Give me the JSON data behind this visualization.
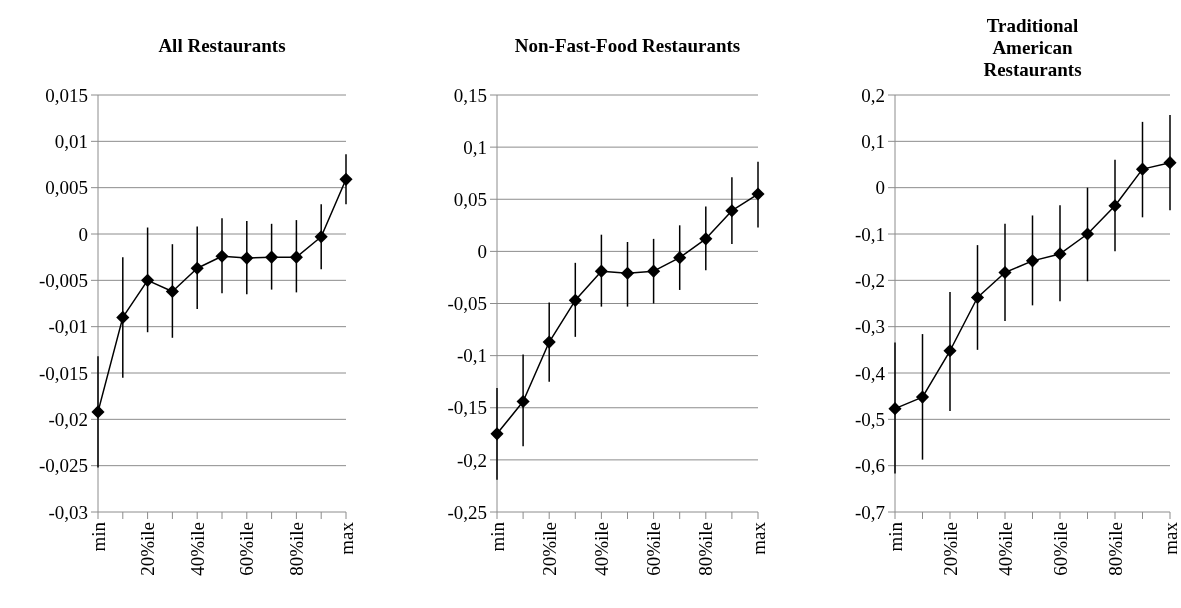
{
  "chart_data": [
    {
      "type": "line",
      "title": "All Restaurants",
      "categories": [
        "min",
        null,
        "20%ile",
        null,
        "40%ile",
        null,
        "60%ile",
        null,
        "80%ile",
        null,
        "max"
      ],
      "series": [
        {
          "color": "#000000",
          "values": [
            -0.0192,
            -0.009,
            -0.005,
            -0.0062,
            -0.0037,
            -0.0024,
            -0.0026,
            -0.0025,
            -0.0025,
            -0.0003,
            0.0059
          ],
          "errors": [
            [
              -0.0252,
              -0.0132
            ],
            [
              -0.0155,
              -0.0025
            ],
            [
              -0.0106,
              0.0007
            ],
            [
              -0.0112,
              -0.0011
            ],
            [
              -0.0081,
              0.0008
            ],
            [
              -0.0064,
              0.0017
            ],
            [
              -0.0065,
              0.0014
            ],
            [
              -0.006,
              0.0011
            ],
            [
              -0.0063,
              0.0015
            ],
            [
              -0.0038,
              0.0032
            ],
            [
              0.0032,
              0.0086
            ]
          ]
        }
      ],
      "ylim": [
        -0.03,
        0.015
      ],
      "yticks": [
        {
          "value": -0.03,
          "label": "-0,03"
        },
        {
          "value": -0.025,
          "label": "-0,025"
        },
        {
          "value": -0.02,
          "label": "-0,02"
        },
        {
          "value": -0.015,
          "label": "-0,015"
        },
        {
          "value": -0.01,
          "label": "-0,01"
        },
        {
          "value": -0.005,
          "label": "-0,005"
        },
        {
          "value": 0,
          "label": "0"
        },
        {
          "value": 0.005,
          "label": "0,005"
        },
        {
          "value": 0.01,
          "label": "0,01"
        },
        {
          "value": 0.015,
          "label": "0,015"
        }
      ],
      "grid": "y",
      "marker": "diamond",
      "line_style": "solid"
    },
    {
      "type": "line",
      "title": "Non-Fast-Food Restaurants",
      "categories": [
        "min",
        null,
        "20%ile",
        null,
        "40%ile",
        null,
        "60%ile",
        null,
        "80%ile",
        null,
        "max"
      ],
      "series": [
        {
          "color": "#000000",
          "values": [
            -0.175,
            -0.144,
            -0.087,
            -0.047,
            -0.019,
            -0.021,
            -0.019,
            -0.006,
            0.012,
            0.039,
            0.055
          ],
          "errors": [
            [
              -0.219,
              -0.131
            ],
            [
              -0.187,
              -0.099
            ],
            [
              -0.125,
              -0.049
            ],
            [
              -0.082,
              -0.011
            ],
            [
              -0.053,
              0.016
            ],
            [
              -0.053,
              0.009
            ],
            [
              -0.05,
              0.012
            ],
            [
              -0.037,
              0.025
            ],
            [
              -0.018,
              0.043
            ],
            [
              0.007,
              0.071
            ],
            [
              0.023,
              0.086
            ]
          ]
        }
      ],
      "ylim": [
        -0.25,
        0.15
      ],
      "yticks": [
        {
          "value": -0.25,
          "label": "-0,25"
        },
        {
          "value": -0.2,
          "label": "-0,2"
        },
        {
          "value": -0.15,
          "label": "-0,15"
        },
        {
          "value": -0.1,
          "label": "-0,1"
        },
        {
          "value": -0.05,
          "label": "-0,05"
        },
        {
          "value": 0,
          "label": "0"
        },
        {
          "value": 0.05,
          "label": "0,05"
        },
        {
          "value": 0.1,
          "label": "0,1"
        },
        {
          "value": 0.15,
          "label": "0,15"
        }
      ],
      "grid": "y",
      "marker": "diamond",
      "line_style": "solid"
    },
    {
      "type": "line",
      "title": "Traditional American Restaurants",
      "categories": [
        "min",
        null,
        "20%ile",
        null,
        "40%ile",
        null,
        "60%ile",
        null,
        "80%ile",
        null,
        "max"
      ],
      "series": [
        {
          "color": "#000000",
          "values": [
            -0.477,
            -0.452,
            -0.352,
            -0.237,
            -0.183,
            -0.158,
            -0.143,
            -0.1,
            -0.039,
            0.04,
            0.054
          ],
          "errors": [
            [
              -0.617,
              -0.334
            ],
            [
              -0.587,
              -0.316
            ],
            [
              -0.482,
              -0.225
            ],
            [
              -0.35,
              -0.124
            ],
            [
              -0.288,
              -0.078
            ],
            [
              -0.254,
              -0.06
            ],
            [
              -0.245,
              -0.038
            ],
            [
              -0.202,
              0.0
            ],
            [
              -0.137,
              0.06
            ],
            [
              -0.064,
              0.142
            ],
            [
              -0.049,
              0.157
            ]
          ]
        }
      ],
      "ylim": [
        -0.7,
        0.2
      ],
      "yticks": [
        {
          "value": -0.7,
          "label": "-0,7"
        },
        {
          "value": -0.6,
          "label": "-0,6"
        },
        {
          "value": -0.5,
          "label": "-0,5"
        },
        {
          "value": -0.4,
          "label": "-0,4"
        },
        {
          "value": -0.3,
          "label": "-0,3"
        },
        {
          "value": -0.2,
          "label": "-0,2"
        },
        {
          "value": -0.1,
          "label": "-0,1"
        },
        {
          "value": 0,
          "label": "0"
        },
        {
          "value": 0.1,
          "label": "0,1"
        },
        {
          "value": 0.2,
          "label": "0,2"
        }
      ],
      "grid": "y",
      "marker": "diamond",
      "line_style": "solid"
    }
  ]
}
